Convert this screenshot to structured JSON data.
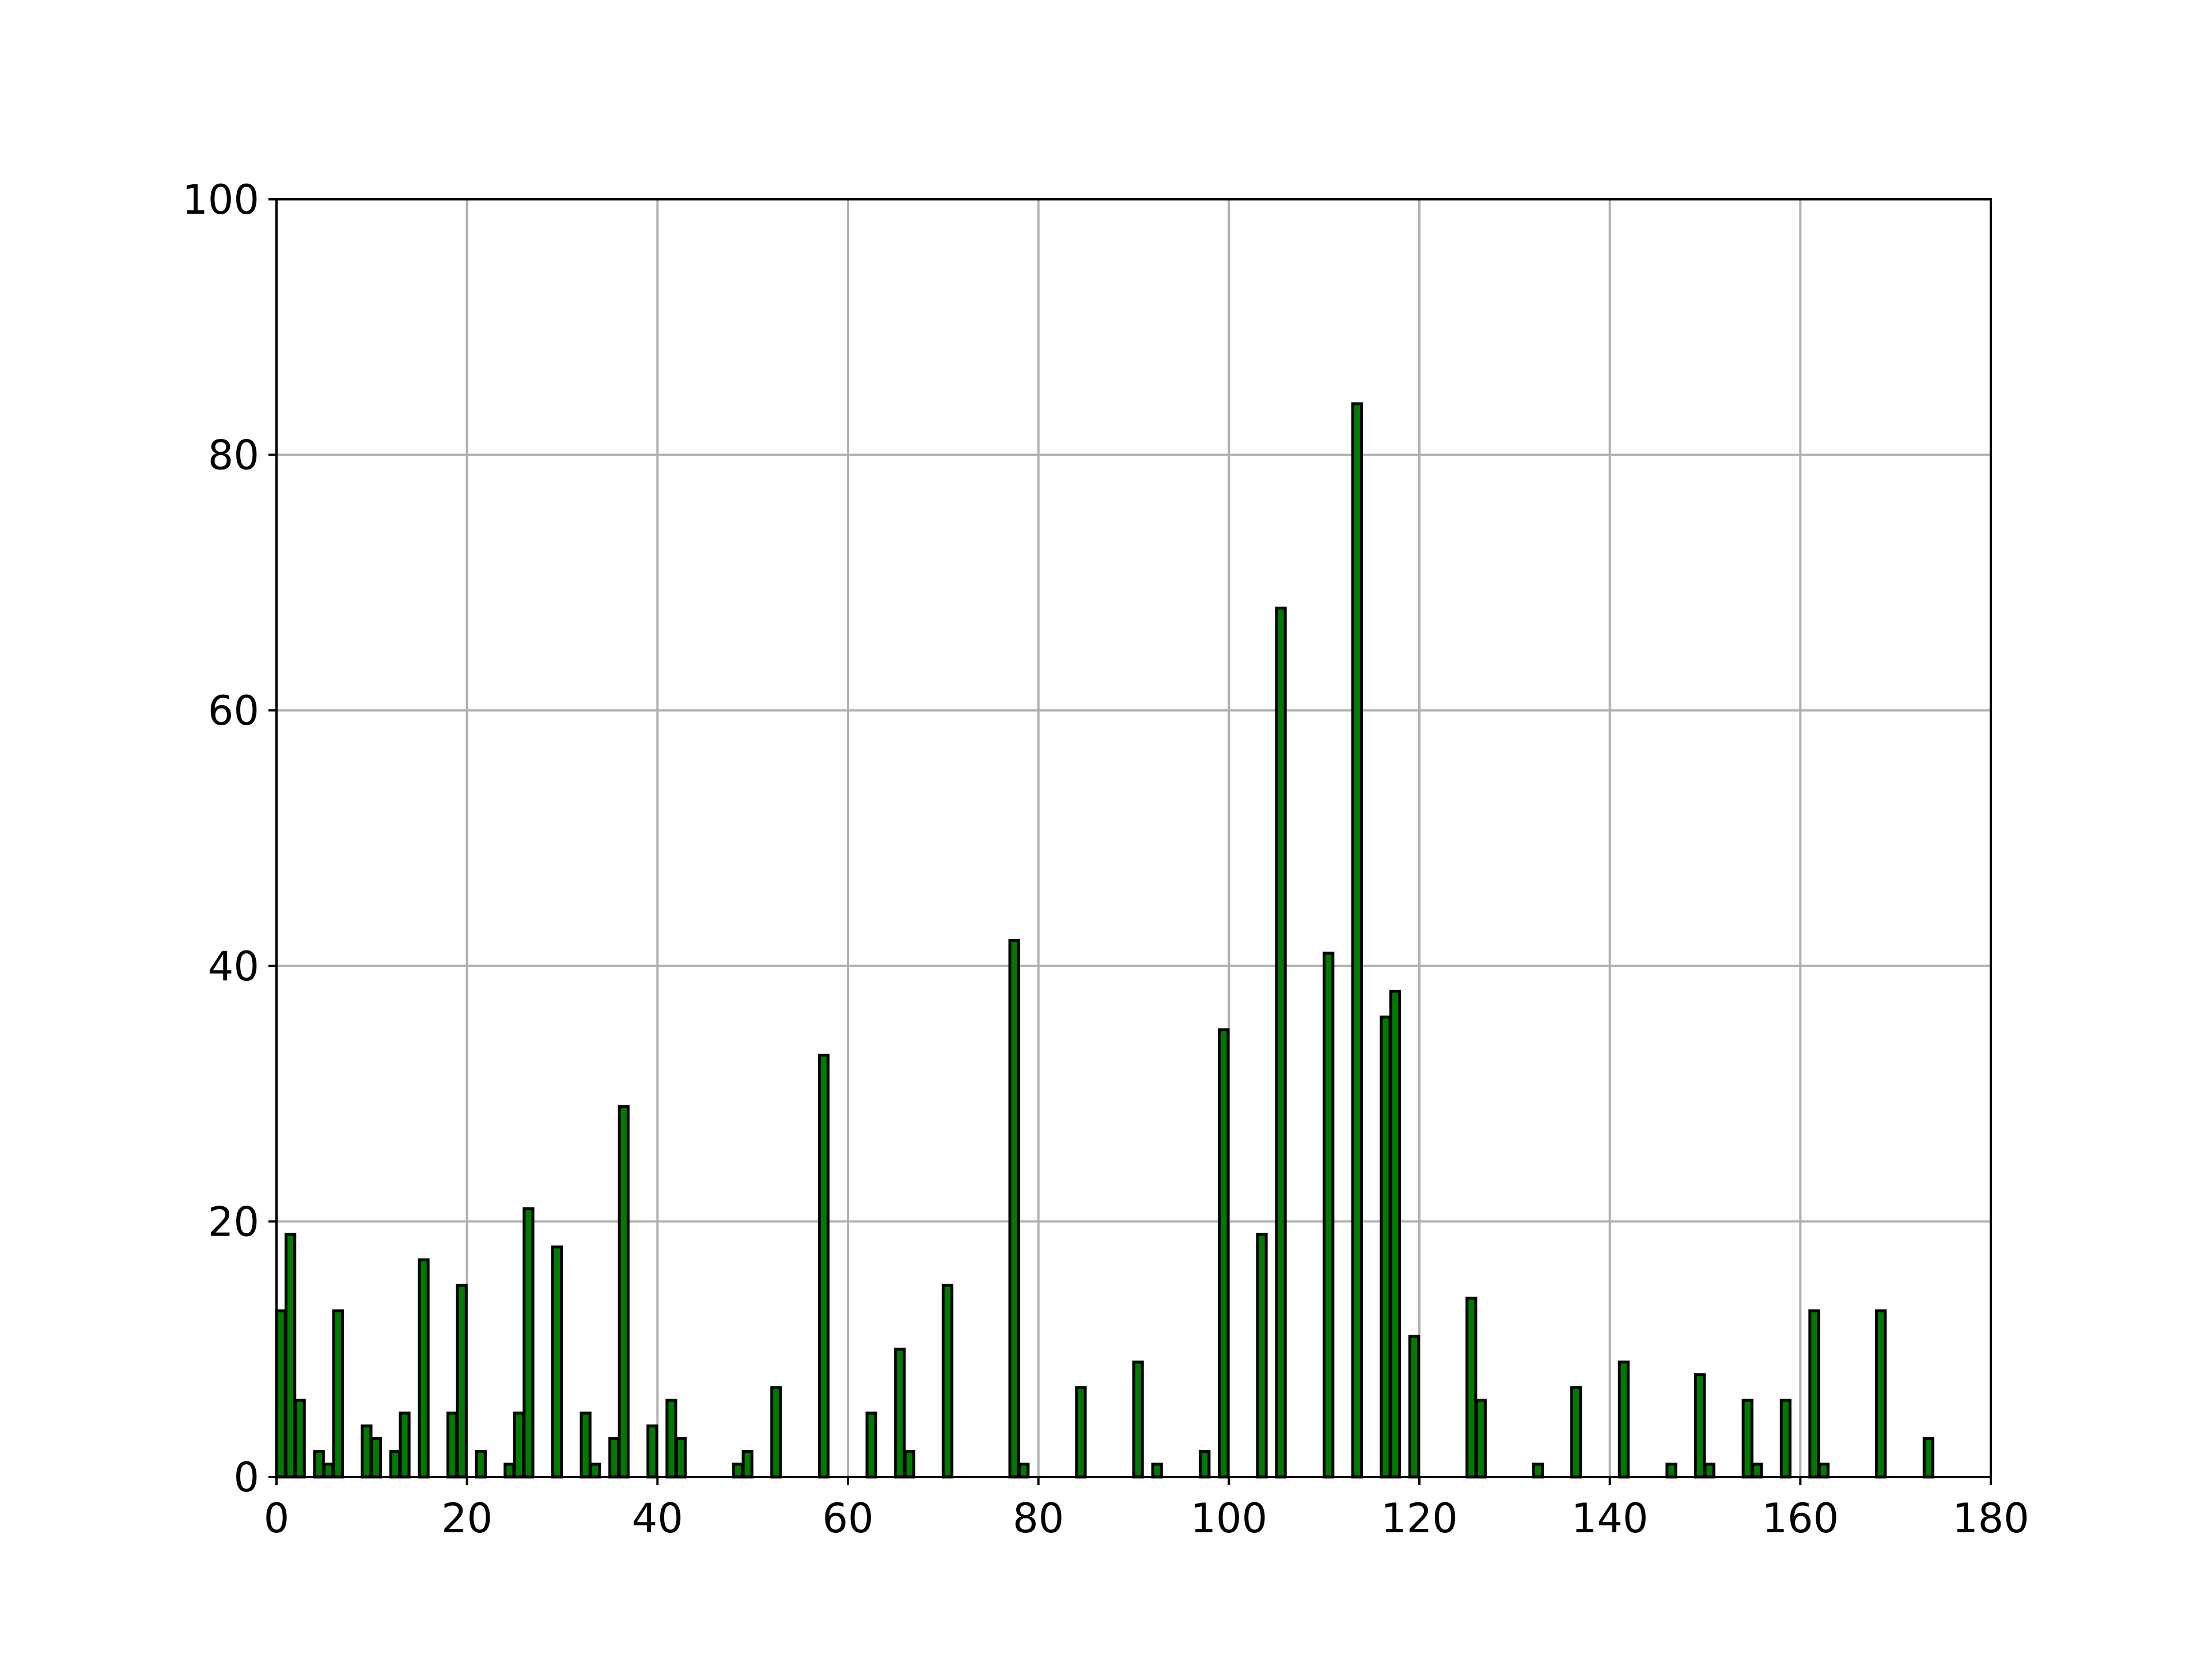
{
  "chart_data": {
    "type": "bar",
    "title": "",
    "xlabel": "",
    "ylabel": "",
    "xlim": [
      0,
      180
    ],
    "ylim": [
      0,
      100
    ],
    "x_ticks": [
      "0",
      "20",
      "40",
      "60",
      "80",
      "100",
      "120",
      "140",
      "160",
      "180"
    ],
    "y_ticks": [
      "0",
      "20",
      "40",
      "60",
      "80",
      "100"
    ],
    "grid": true,
    "bar_color": "#007a00",
    "edge_color": "#000000",
    "grid_color": "#b0b0b0",
    "bar_width": 1,
    "x": [
      0,
      1,
      2,
      4,
      5,
      6,
      9,
      10,
      12,
      13,
      15,
      18,
      19,
      21,
      24,
      25,
      26,
      29,
      32,
      33,
      35,
      36,
      39,
      41,
      42,
      48,
      49,
      52,
      57,
      62,
      65,
      66,
      70,
      77,
      78,
      84,
      90,
      92,
      97,
      99,
      103,
      105,
      110,
      113,
      116,
      117,
      119,
      125,
      126,
      132,
      136,
      141,
      146,
      149,
      150,
      154,
      155,
      158,
      161,
      162,
      168,
      173
    ],
    "values": [
      13,
      19,
      6,
      2,
      1,
      13,
      4,
      3,
      2,
      5,
      17,
      5,
      15,
      2,
      1,
      5,
      21,
      18,
      5,
      1,
      3,
      29,
      4,
      6,
      3,
      1,
      2,
      7,
      33,
      5,
      10,
      2,
      15,
      42,
      1,
      7,
      9,
      1,
      2,
      35,
      19,
      68,
      41,
      84,
      36,
      38,
      11,
      14,
      6,
      1,
      7,
      9,
      1,
      8,
      1,
      6,
      1,
      6,
      13,
      1,
      13,
      3
    ]
  }
}
